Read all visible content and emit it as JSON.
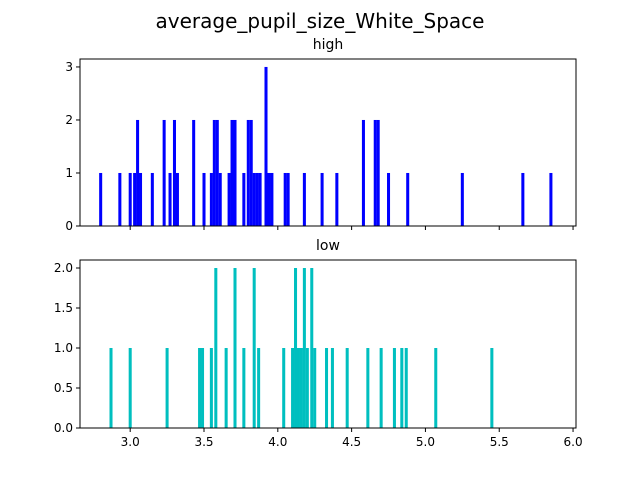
{
  "chart_data": {
    "suptitle": "average_pupil_size_White_Space",
    "type": "histogram",
    "shared_x": true,
    "xlim": [
      2.66,
      6.02
    ],
    "xticks": [
      "3.0",
      "3.5",
      "4.0",
      "4.5",
      "5.0",
      "5.5",
      "6.0"
    ],
    "bin_width": 0.0205,
    "panels": [
      {
        "title": "high",
        "color": "#0000ff",
        "ylim": [
          0,
          3.15
        ],
        "yticks": [
          "0",
          "1",
          "2",
          "3"
        ],
        "x_tick_labels_visible": false,
        "bins": [
          {
            "x": 2.8,
            "count": 1
          },
          {
            "x": 2.93,
            "count": 1
          },
          {
            "x": 3.0,
            "count": 1
          },
          {
            "x": 3.03,
            "count": 1
          },
          {
            "x": 3.05,
            "count": 2
          },
          {
            "x": 3.07,
            "count": 1
          },
          {
            "x": 3.15,
            "count": 1
          },
          {
            "x": 3.23,
            "count": 2
          },
          {
            "x": 3.27,
            "count": 1
          },
          {
            "x": 3.3,
            "count": 2
          },
          {
            "x": 3.32,
            "count": 1
          },
          {
            "x": 3.43,
            "count": 2
          },
          {
            "x": 3.5,
            "count": 1
          },
          {
            "x": 3.55,
            "count": 1
          },
          {
            "x": 3.57,
            "count": 2
          },
          {
            "x": 3.59,
            "count": 2
          },
          {
            "x": 3.61,
            "count": 1
          },
          {
            "x": 3.67,
            "count": 1
          },
          {
            "x": 3.69,
            "count": 2
          },
          {
            "x": 3.71,
            "count": 2
          },
          {
            "x": 3.77,
            "count": 1
          },
          {
            "x": 3.8,
            "count": 2
          },
          {
            "x": 3.82,
            "count": 2
          },
          {
            "x": 3.84,
            "count": 1
          },
          {
            "x": 3.86,
            "count": 1
          },
          {
            "x": 3.88,
            "count": 1
          },
          {
            "x": 3.92,
            "count": 3
          },
          {
            "x": 3.94,
            "count": 1
          },
          {
            "x": 3.96,
            "count": 1
          },
          {
            "x": 4.05,
            "count": 1
          },
          {
            "x": 4.07,
            "count": 1
          },
          {
            "x": 4.18,
            "count": 1
          },
          {
            "x": 4.3,
            "count": 1
          },
          {
            "x": 4.4,
            "count": 1
          },
          {
            "x": 4.58,
            "count": 2
          },
          {
            "x": 4.66,
            "count": 2
          },
          {
            "x": 4.68,
            "count": 2
          },
          {
            "x": 4.75,
            "count": 1
          },
          {
            "x": 4.88,
            "count": 1
          },
          {
            "x": 5.25,
            "count": 1
          },
          {
            "x": 5.66,
            "count": 1
          },
          {
            "x": 5.85,
            "count": 1
          }
        ]
      },
      {
        "title": "low",
        "color": "#00bfbf",
        "ylim": [
          0,
          2.1
        ],
        "yticks": [
          "0.0",
          "0.5",
          "1.0",
          "1.5",
          "2.0"
        ],
        "x_tick_labels_visible": true,
        "bins": [
          {
            "x": 2.87,
            "count": 1
          },
          {
            "x": 3.0,
            "count": 1
          },
          {
            "x": 3.25,
            "count": 1
          },
          {
            "x": 3.47,
            "count": 1
          },
          {
            "x": 3.49,
            "count": 1
          },
          {
            "x": 3.55,
            "count": 1
          },
          {
            "x": 3.58,
            "count": 2
          },
          {
            "x": 3.65,
            "count": 1
          },
          {
            "x": 3.71,
            "count": 2
          },
          {
            "x": 3.77,
            "count": 1
          },
          {
            "x": 3.84,
            "count": 2
          },
          {
            "x": 3.87,
            "count": 1
          },
          {
            "x": 4.04,
            "count": 1
          },
          {
            "x": 4.1,
            "count": 1
          },
          {
            "x": 4.12,
            "count": 2
          },
          {
            "x": 4.14,
            "count": 1
          },
          {
            "x": 4.16,
            "count": 1
          },
          {
            "x": 4.18,
            "count": 2
          },
          {
            "x": 4.2,
            "count": 1
          },
          {
            "x": 4.23,
            "count": 2
          },
          {
            "x": 4.25,
            "count": 1
          },
          {
            "x": 4.33,
            "count": 1
          },
          {
            "x": 4.37,
            "count": 1
          },
          {
            "x": 4.47,
            "count": 1
          },
          {
            "x": 4.61,
            "count": 1
          },
          {
            "x": 4.7,
            "count": 1
          },
          {
            "x": 4.79,
            "count": 1
          },
          {
            "x": 4.84,
            "count": 1
          },
          {
            "x": 4.87,
            "count": 1
          },
          {
            "x": 5.07,
            "count": 1
          },
          {
            "x": 5.45,
            "count": 1
          }
        ]
      }
    ]
  }
}
